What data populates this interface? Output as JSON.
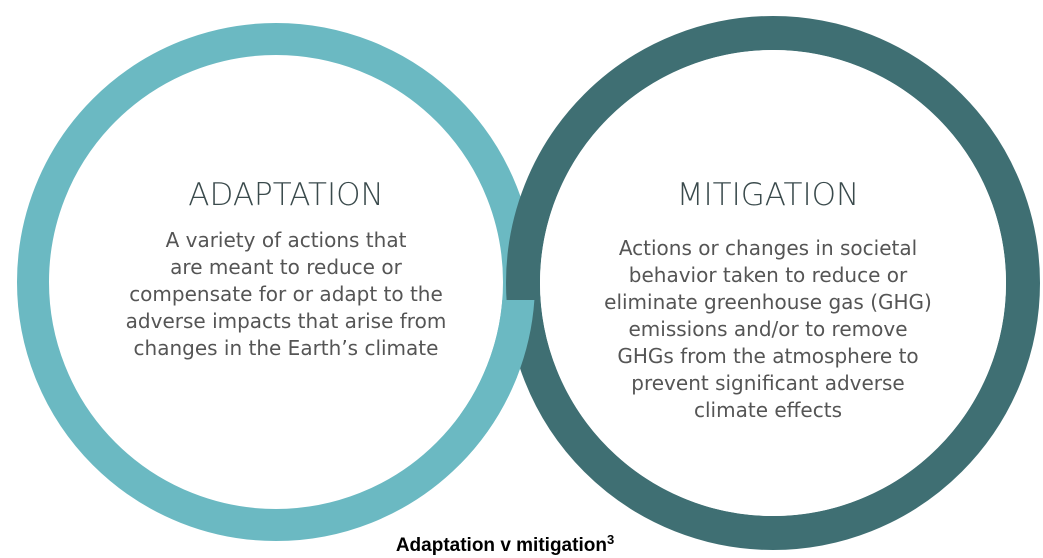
{
  "adaptation": {
    "title": "ADAPTATION",
    "lines": [
      "A variety of actions that",
      "are meant to reduce or",
      "compensate for or adapt to the",
      "adverse impacts that arise from",
      "changes in the Earth’s climate"
    ]
  },
  "mitigation": {
    "title": "MITIGATION",
    "lines": [
      "Actions or changes in societal",
      "behavior taken to reduce or",
      "eliminate greenhouse gas (GHG)",
      "emissions and/or to remove",
      "GHGs from the atmosphere to",
      "prevent significant adverse",
      "climate effects"
    ]
  },
  "caption": {
    "text": "Adaptation v mitigation",
    "sup": "3"
  }
}
